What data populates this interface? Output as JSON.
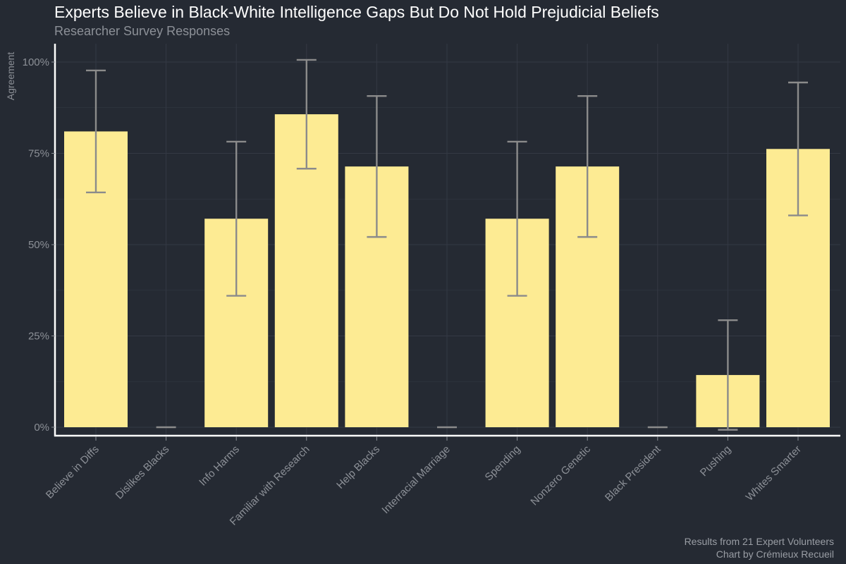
{
  "chart_data": {
    "type": "bar",
    "title": "Experts Believe in Black-White Intelligence Gaps But Do Not Hold Prejudicial Beliefs",
    "subtitle": "Researcher Survey Responses",
    "xlabel": "",
    "ylabel": "Agreement",
    "ylim": [
      0,
      1.03
    ],
    "yticks": [
      0,
      0.25,
      0.5,
      0.75,
      1.0
    ],
    "ytick_labels": [
      "0%",
      "25%",
      "50%",
      "75%",
      "100%"
    ],
    "grid": true,
    "categories": [
      "Believe in Diffs",
      "Dislikes Blacks",
      "Info Harms",
      "Familiar with Research",
      "Help Blacks",
      "Interracial Marriage",
      "Spending",
      "Nonzero Genetic",
      "Black President",
      "Pushing",
      "Whites Smarter"
    ],
    "values": [
      0.81,
      0.0,
      0.571,
      0.857,
      0.714,
      0.0,
      0.571,
      0.714,
      0.0,
      0.143,
      0.762
    ],
    "error_low": [
      0.643,
      0.0,
      0.36,
      0.708,
      0.521,
      0.0,
      0.36,
      0.521,
      0.0,
      -0.007,
      0.58
    ],
    "error_high": [
      0.977,
      0.0,
      0.782,
      1.006,
      0.907,
      0.0,
      0.782,
      0.907,
      0.0,
      0.293,
      0.944
    ],
    "caption": [
      "Results from 21 Expert Volunteers",
      "Chart by Crémieux Recueil"
    ],
    "colors": {
      "background": "#252a33",
      "bar": "#fdeb93",
      "error_bar": "#8b8b8b",
      "grid": "#343944",
      "axis": "#ffffff",
      "tick_label": "#8c9097",
      "title": "#ffffff"
    }
  }
}
